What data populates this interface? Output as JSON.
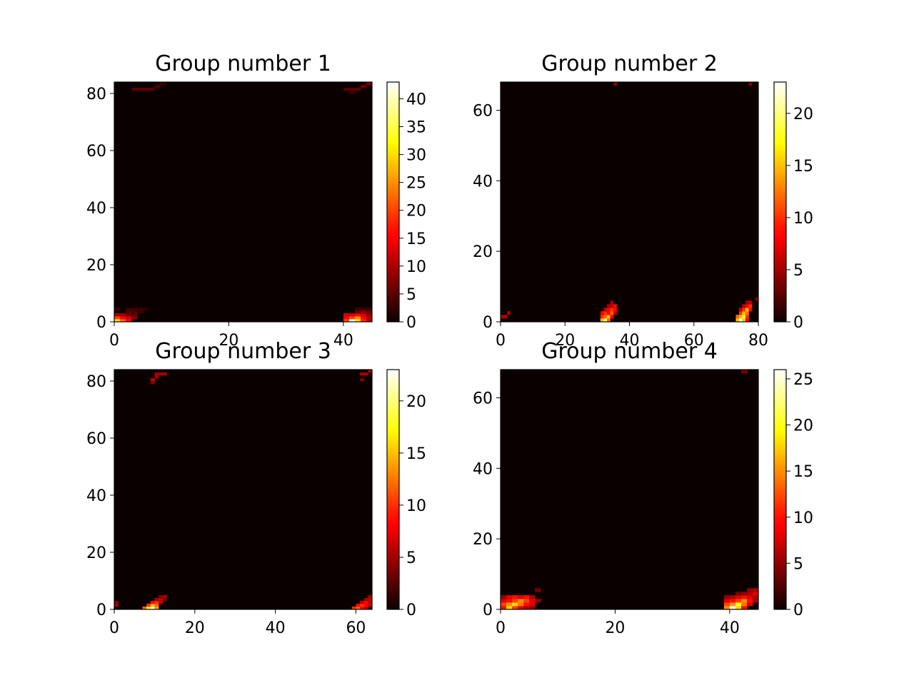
{
  "chart_data": [
    {
      "type": "heatmap",
      "title": "Group number 1",
      "colormap": "hot",
      "xlim": [
        0,
        45
      ],
      "ylim": [
        0,
        84
      ],
      "xticks": [
        0,
        20,
        40
      ],
      "yticks": [
        0,
        20,
        40,
        60,
        80
      ],
      "colorbar": {
        "min": 0,
        "max": 43,
        "ticks": [
          0,
          5,
          10,
          15,
          20,
          25,
          30,
          35,
          40
        ]
      },
      "cells": [
        [
          0,
          0,
          30
        ],
        [
          1,
          0,
          22
        ],
        [
          2,
          0,
          15
        ],
        [
          0,
          1,
          20
        ],
        [
          1,
          1,
          15
        ],
        [
          2,
          1,
          12
        ],
        [
          3,
          1,
          8
        ],
        [
          0,
          2,
          10
        ],
        [
          1,
          2,
          8
        ],
        [
          2,
          2,
          6
        ],
        [
          3,
          2,
          5
        ],
        [
          2,
          3,
          5
        ],
        [
          3,
          3,
          4
        ],
        [
          4,
          3,
          3
        ],
        [
          0,
          4,
          3
        ],
        [
          2,
          4,
          3
        ],
        [
          3,
          4,
          3
        ],
        [
          4,
          4,
          3
        ],
        [
          5,
          4,
          2
        ],
        [
          40,
          0,
          20
        ],
        [
          41,
          0,
          43
        ],
        [
          42,
          0,
          30
        ],
        [
          43,
          0,
          18
        ],
        [
          44,
          0,
          10
        ],
        [
          40,
          1,
          15
        ],
        [
          41,
          1,
          20
        ],
        [
          42,
          1,
          25
        ],
        [
          43,
          1,
          15
        ],
        [
          44,
          1,
          10
        ],
        [
          40,
          2,
          12
        ],
        [
          41,
          2,
          12
        ],
        [
          42,
          2,
          15
        ],
        [
          43,
          2,
          12
        ],
        [
          44,
          2,
          8
        ],
        [
          42,
          3,
          6
        ],
        [
          43,
          3,
          8
        ],
        [
          44,
          3,
          6
        ],
        [
          42,
          4,
          3
        ],
        [
          43,
          4,
          3
        ],
        [
          44,
          4,
          3
        ],
        [
          3,
          81,
          5
        ],
        [
          4,
          81,
          5
        ],
        [
          5,
          81,
          5
        ],
        [
          6,
          81,
          5
        ],
        [
          7,
          82,
          4
        ],
        [
          8,
          83,
          3
        ],
        [
          40,
          81,
          5
        ],
        [
          41,
          81,
          5
        ],
        [
          42,
          81,
          5
        ],
        [
          43,
          82,
          6
        ],
        [
          44,
          83,
          7
        ],
        [
          41,
          80,
          3
        ]
      ]
    },
    {
      "type": "heatmap",
      "title": "Group number 2",
      "colormap": "hot",
      "xlim": [
        0,
        80
      ],
      "ylim": [
        0,
        68
      ],
      "xticks": [
        0,
        20,
        40,
        60,
        80
      ],
      "yticks": [
        0,
        20,
        40,
        60
      ],
      "colorbar": {
        "min": 0,
        "max": 23,
        "ticks": [
          0,
          5,
          10,
          15,
          20
        ]
      },
      "cells": [
        [
          0,
          1,
          5
        ],
        [
          1,
          1,
          5
        ],
        [
          2,
          2,
          5
        ],
        [
          31,
          0,
          15
        ],
        [
          32,
          0,
          20
        ],
        [
          33,
          0,
          12
        ],
        [
          31,
          1,
          10
        ],
        [
          32,
          1,
          12
        ],
        [
          33,
          1,
          15
        ],
        [
          34,
          1,
          8
        ],
        [
          31,
          2,
          8
        ],
        [
          32,
          2,
          10
        ],
        [
          33,
          2,
          8
        ],
        [
          34,
          2,
          12
        ],
        [
          35,
          2,
          6
        ],
        [
          32,
          3,
          6
        ],
        [
          33,
          3,
          8
        ],
        [
          34,
          3,
          10
        ],
        [
          35,
          3,
          8
        ],
        [
          33,
          4,
          5
        ],
        [
          34,
          4,
          6
        ],
        [
          35,
          4,
          8
        ],
        [
          34,
          5,
          5
        ],
        [
          73,
          0,
          15
        ],
        [
          74,
          0,
          23
        ],
        [
          75,
          0,
          15
        ],
        [
          76,
          0,
          8
        ],
        [
          73,
          1,
          12
        ],
        [
          74,
          1,
          15
        ],
        [
          75,
          1,
          18
        ],
        [
          76,
          1,
          10
        ],
        [
          74,
          2,
          10
        ],
        [
          75,
          2,
          15
        ],
        [
          76,
          2,
          12
        ],
        [
          74,
          3,
          6
        ],
        [
          75,
          3,
          10
        ],
        [
          76,
          3,
          15
        ],
        [
          77,
          3,
          8
        ],
        [
          75,
          4,
          6
        ],
        [
          76,
          4,
          8
        ],
        [
          77,
          4,
          10
        ],
        [
          76,
          5,
          5
        ],
        [
          77,
          5,
          6
        ],
        [
          79,
          6,
          4
        ],
        [
          35,
          67,
          4
        ],
        [
          77,
          67,
          4
        ]
      ]
    },
    {
      "type": "heatmap",
      "title": "Group number 3",
      "colormap": "hot",
      "xlim": [
        0,
        64
      ],
      "ylim": [
        0,
        84
      ],
      "xticks": [
        0,
        20,
        40,
        60
      ],
      "yticks": [
        0,
        20,
        40,
        60,
        80
      ],
      "colorbar": {
        "min": 0,
        "max": 23,
        "ticks": [
          0,
          5,
          10,
          15,
          20
        ]
      },
      "cells": [
        [
          0,
          1,
          5
        ],
        [
          0,
          2,
          4
        ],
        [
          7,
          0,
          12
        ],
        [
          8,
          0,
          18
        ],
        [
          9,
          0,
          23
        ],
        [
          10,
          0,
          14
        ],
        [
          8,
          1,
          10
        ],
        [
          9,
          1,
          15
        ],
        [
          10,
          1,
          12
        ],
        [
          9,
          2,
          8
        ],
        [
          10,
          2,
          10
        ],
        [
          11,
          2,
          6
        ],
        [
          10,
          3,
          5
        ],
        [
          11,
          3,
          6
        ],
        [
          12,
          3,
          4
        ],
        [
          11,
          4,
          4
        ],
        [
          12,
          4,
          5
        ],
        [
          59,
          0,
          10
        ],
        [
          60,
          0,
          12
        ],
        [
          61,
          0,
          8
        ],
        [
          62,
          0,
          6
        ],
        [
          60,
          1,
          8
        ],
        [
          61,
          1,
          10
        ],
        [
          62,
          1,
          8
        ],
        [
          63,
          1,
          6
        ],
        [
          61,
          2,
          6
        ],
        [
          62,
          2,
          8
        ],
        [
          63,
          2,
          6
        ],
        [
          62,
          3,
          5
        ],
        [
          63,
          3,
          6
        ],
        [
          63,
          4,
          5
        ],
        [
          9,
          80,
          6
        ],
        [
          10,
          81,
          5
        ],
        [
          10,
          82,
          5
        ],
        [
          11,
          82,
          5
        ],
        [
          12,
          82,
          5
        ],
        [
          9,
          79,
          4
        ],
        [
          61,
          82,
          5
        ],
        [
          62,
          82,
          5
        ],
        [
          63,
          83,
          5
        ],
        [
          61,
          80,
          4
        ]
      ]
    },
    {
      "type": "heatmap",
      "title": "Group number 4",
      "colormap": "hot",
      "xlim": [
        0,
        45
      ],
      "ylim": [
        0,
        68
      ],
      "xticks": [
        0,
        20,
        40
      ],
      "yticks": [
        0,
        20,
        40,
        60
      ],
      "colorbar": {
        "min": 0,
        "max": 26,
        "ticks": [
          0,
          5,
          10,
          15,
          20,
          25
        ]
      },
      "cells": [
        [
          0,
          0,
          10
        ],
        [
          1,
          0,
          18
        ],
        [
          2,
          0,
          12
        ],
        [
          3,
          0,
          8
        ],
        [
          4,
          0,
          6
        ],
        [
          5,
          0,
          5
        ],
        [
          0,
          1,
          12
        ],
        [
          1,
          1,
          15
        ],
        [
          2,
          1,
          18
        ],
        [
          3,
          1,
          14
        ],
        [
          4,
          1,
          10
        ],
        [
          5,
          1,
          8
        ],
        [
          0,
          2,
          8
        ],
        [
          1,
          2,
          10
        ],
        [
          2,
          2,
          12
        ],
        [
          3,
          2,
          15
        ],
        [
          4,
          2,
          12
        ],
        [
          5,
          2,
          8
        ],
        [
          6,
          2,
          5
        ],
        [
          0,
          3,
          5
        ],
        [
          1,
          3,
          8
        ],
        [
          2,
          3,
          10
        ],
        [
          3,
          3,
          8
        ],
        [
          4,
          3,
          10
        ],
        [
          5,
          3,
          6
        ],
        [
          6,
          5,
          4
        ],
        [
          39,
          0,
          15
        ],
        [
          40,
          0,
          26
        ],
        [
          41,
          0,
          18
        ],
        [
          42,
          0,
          10
        ],
        [
          39,
          1,
          12
        ],
        [
          40,
          1,
          15
        ],
        [
          41,
          1,
          20
        ],
        [
          42,
          1,
          14
        ],
        [
          43,
          1,
          8
        ],
        [
          39,
          2,
          8
        ],
        [
          40,
          2,
          10
        ],
        [
          41,
          2,
          12
        ],
        [
          42,
          2,
          15
        ],
        [
          43,
          2,
          10
        ],
        [
          44,
          2,
          6
        ],
        [
          39,
          3,
          5
        ],
        [
          40,
          3,
          6
        ],
        [
          41,
          3,
          8
        ],
        [
          42,
          3,
          10
        ],
        [
          43,
          3,
          8
        ],
        [
          44,
          3,
          6
        ],
        [
          41,
          4,
          4
        ],
        [
          42,
          4,
          5
        ],
        [
          43,
          4,
          6
        ],
        [
          44,
          4,
          8
        ],
        [
          43,
          5,
          5
        ],
        [
          44,
          5,
          6
        ],
        [
          42,
          67,
          4
        ]
      ]
    }
  ]
}
